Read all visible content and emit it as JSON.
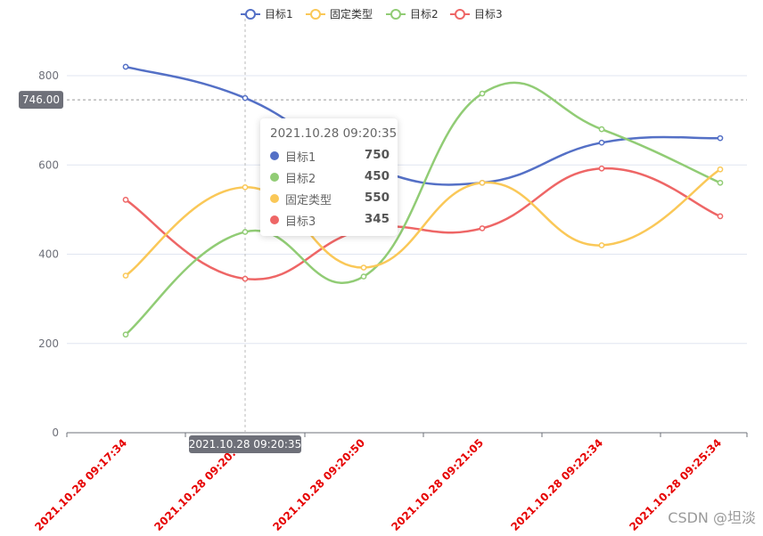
{
  "chart_data": {
    "type": "line",
    "smooth": true,
    "categories": [
      "2021.10.28 09:17:34",
      "2021.10.28 09:20:35",
      "2021.10.28 09:20:50",
      "2021.10.28 09:21:05",
      "2021.10.28 09:22:34",
      "2021.10.28 09:25:34"
    ],
    "series": [
      {
        "name": "目标1",
        "color": "#5470c6",
        "values": [
          820,
          750,
          600,
          560,
          650,
          660
        ]
      },
      {
        "name": "固定类型",
        "color": "#fac858",
        "values": [
          352,
          550,
          370,
          560,
          420,
          590
        ]
      },
      {
        "name": "目标2",
        "color": "#91cc75",
        "values": [
          220,
          450,
          350,
          760,
          680,
          560
        ]
      },
      {
        "name": "目标3",
        "color": "#ee6666",
        "values": [
          522,
          345,
          455,
          458,
          592,
          485
        ]
      }
    ],
    "ylim": [
      0,
      800
    ],
    "yticks": [
      0,
      200,
      400,
      600,
      800
    ],
    "legend_position": "top-center",
    "xlabel_color": "#e60000",
    "grid": true
  },
  "pointer": {
    "y_value_label": "746.00",
    "y_value": 746,
    "x_label": "2021.10.28 09:20:35",
    "x_index": 1
  },
  "tooltip": {
    "title": "2021.10.28 09:20:35",
    "rows": [
      {
        "name": "目标1",
        "value": "750",
        "color": "#5470c6"
      },
      {
        "name": "目标2",
        "value": "450",
        "color": "#91cc75"
      },
      {
        "name": "固定类型",
        "value": "550",
        "color": "#fac858"
      },
      {
        "name": "目标3",
        "value": "345",
        "color": "#ee6666"
      }
    ]
  },
  "watermark": "CSDN @坦淡"
}
